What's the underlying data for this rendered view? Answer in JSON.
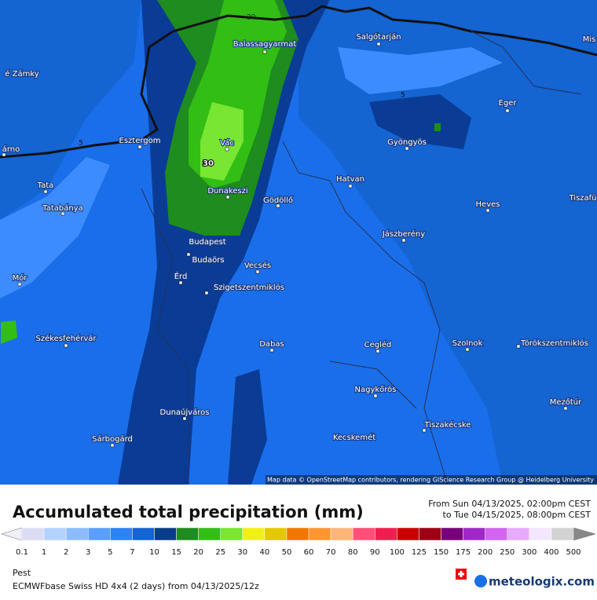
{
  "header": {
    "title": "Accumulated total precipitation (mm)",
    "period_from": "From Sun 04/13/2025, 02:00pm CEST",
    "period_to": "to Tue 04/15/2025, 08:00pm CEST"
  },
  "map": {
    "places": [
      "é Zámky",
      "Balassagyarmat",
      "Salgótarján",
      "Mis",
      "Eger",
      "Esztergom",
      "Vác",
      "árno",
      "Gyöngyös",
      "Tata",
      "Dunakeszi",
      "Gödöllő",
      "Hatvan",
      "Heves",
      "Tiszafü",
      "Tatabánya",
      "Jászberény",
      "Budapest",
      "Budaörs",
      "Mór",
      "Érd",
      "Vecsés",
      "Szigetszentmiklós",
      "Székesfehérvár",
      "Dabas",
      "Cegléd",
      "Szolnok",
      "Törökszentmiklós",
      "Nagykőrös",
      "Mezőtúr",
      "Dunaújváros",
      "Tiszakécske",
      "Sárbogárd",
      "Kecskemét"
    ],
    "contour_labels": [
      "20",
      "5",
      "5",
      "30"
    ],
    "attribution": "Map data © OpenStreetMap contributors, rendering GIScience Research Group @ Heidelberg University"
  },
  "legend": {
    "ticks": [
      0.1,
      1,
      2,
      3,
      5,
      7,
      10,
      15,
      20,
      25,
      30,
      40,
      50,
      60,
      70,
      80,
      90,
      100,
      125,
      150,
      175,
      200,
      250,
      300,
      400,
      500
    ],
    "colors": [
      "#dcdcf5",
      "#b4d2ff",
      "#8cbcff",
      "#5a9eff",
      "#2d82f5",
      "#1464d2",
      "#0a3c8c",
      "#1e8c1e",
      "#32be14",
      "#78e632",
      "#f0f014",
      "#e6c800",
      "#f07800",
      "#ff9632",
      "#ffb478",
      "#ff5078",
      "#f01e50",
      "#c80000",
      "#9b0014",
      "#780078",
      "#a028c8",
      "#d264f0",
      "#e6aaff",
      "#f5e6ff",
      "#d2d2d2"
    ]
  },
  "footer": {
    "location": "Pest",
    "model": "ECMWFbase Swiss HD 4x4 (2 days) from 04/13/2025/12z",
    "brand": "meteologix.com"
  }
}
